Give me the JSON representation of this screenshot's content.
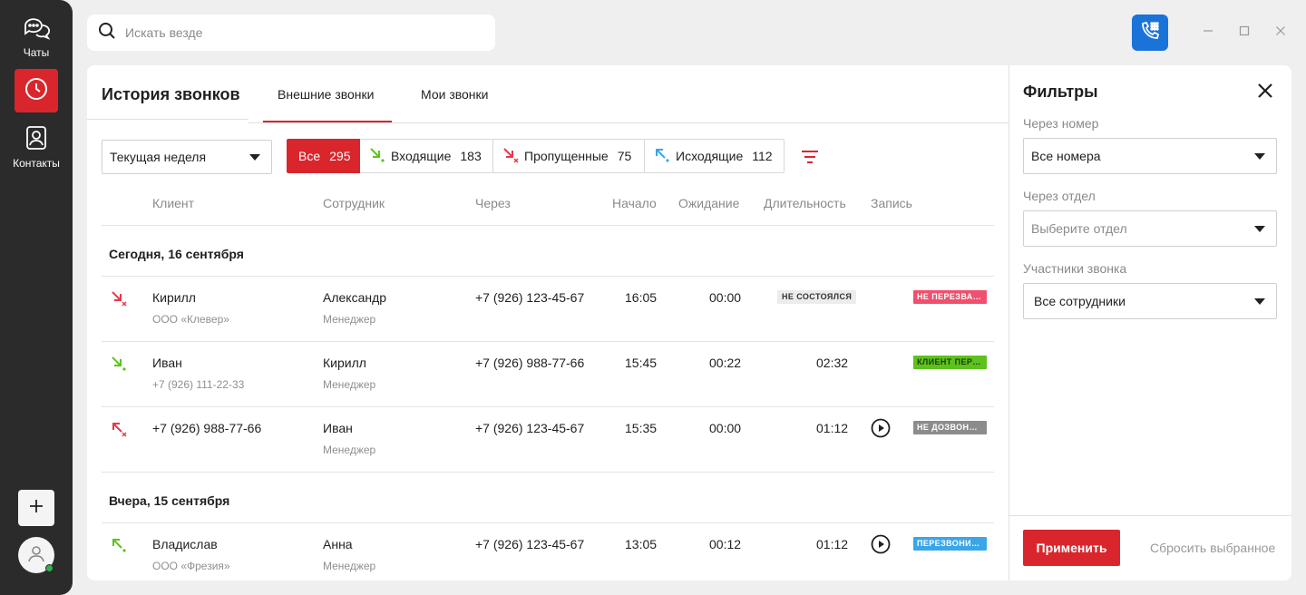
{
  "rail": {
    "chats_label": "Чаты",
    "contacts_label": "Контакты",
    "icons": [
      "chat-icon",
      "clock-icon",
      "contacts-icon",
      "plus-icon",
      "user-icon"
    ]
  },
  "search": {
    "placeholder": "Искать везде"
  },
  "main": {
    "title": "История звонков",
    "tabs": [
      {
        "label": "Внешние звонки",
        "active": true
      },
      {
        "label": "Мои звонки",
        "active": false
      }
    ],
    "period": "Текущая неделя",
    "segments": [
      {
        "label": "Все",
        "count": "295",
        "active": true
      },
      {
        "label": "Входящие",
        "count": "183",
        "icon": "incoming-icon"
      },
      {
        "label": "Пропущенные",
        "count": "75",
        "icon": "missed-icon"
      },
      {
        "label": "Исходящие",
        "count": "112",
        "icon": "outgoing-icon"
      }
    ],
    "columns": [
      "Клиент",
      "Сотрудник",
      "Через",
      "Начало",
      "Ожидание",
      "Длительность",
      "Запись"
    ],
    "groups": [
      {
        "title": "Сегодня, 16 сентября",
        "rows": [
          {
            "type": "missed",
            "client": "Кирилл",
            "client_sub": "ООО «Клевер»",
            "employee": "Александр",
            "employee_sub": "Менеджер",
            "via": "+7 (926) 123-45-67",
            "start": "16:05",
            "wait": "00:00",
            "duration_chip": "НЕ СОСТОЯЛСЯ",
            "duration": "",
            "record": false,
            "status": "НЕ ПЕРЕЗВАНИВАЛИ"
          },
          {
            "type": "incoming",
            "client": "Иван",
            "client_sub": "+7 (926) 111-22-33",
            "employee": "Кирилл",
            "employee_sub": "Менеджер",
            "via": "+7 (926) 988-77-66",
            "start": "15:45",
            "wait": "00:22",
            "duration": "02:32",
            "record": false,
            "status": "КЛИЕНТ ПЕРЕЗВОНИЛ"
          },
          {
            "type": "outgoing-failed",
            "client": "+7 (926) 988-77-66",
            "client_sub": "",
            "employee": "Иван",
            "employee_sub": "Менеджер",
            "via": "+7 (926) 123-45-67",
            "start": "15:35",
            "wait": "00:00",
            "duration": "01:12",
            "record": true,
            "status": "НЕ ДОЗВОНИЛИСЬ"
          }
        ]
      },
      {
        "title": "Вчера, 15 сентября",
        "rows": [
          {
            "type": "outgoing",
            "client": "Владислав",
            "client_sub": "ООО «Фрезия»",
            "employee": "Анна",
            "employee_sub": "Менеджер",
            "via": "+7 (926) 123-45-67",
            "start": "13:05",
            "wait": "00:12",
            "duration": "01:12",
            "record": true,
            "status": "ПЕРЕЗВОНИЛИ"
          }
        ]
      }
    ]
  },
  "filters": {
    "title": "Фильтры",
    "via_number_label": "Через номер",
    "via_number_value": "Все номера",
    "via_dept_label": "Через отдел",
    "via_dept_placeholder": "Выберите отдел",
    "participants_label": "Участники звонка",
    "participants_value": "Все сотрудники",
    "apply": "Применить",
    "reset": "Сбросить выбранное"
  },
  "colors": {
    "accent_red": "#d9262c",
    "call_blue": "#1a73d9",
    "incoming_green": "#5dc21e",
    "missed_red": "#e5384a",
    "outgoing_blue": "#3aa6e8",
    "badge_pink": "#f0506e",
    "badge_green": "#5dc21e",
    "badge_gray": "#8c8c8c",
    "badge_blue": "#3aa6e8"
  }
}
